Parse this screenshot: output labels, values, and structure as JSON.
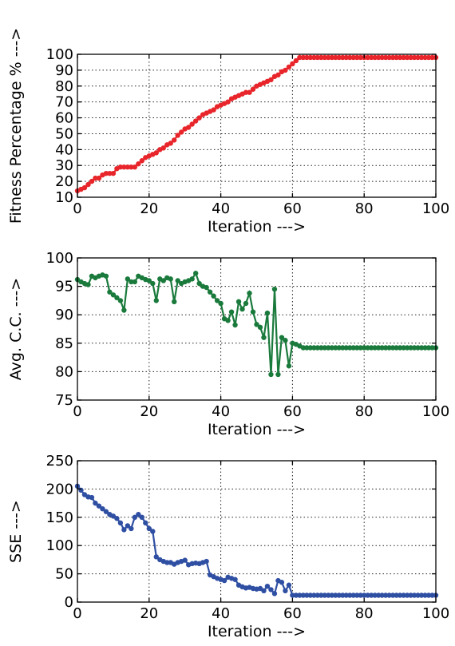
{
  "chart_data": [
    {
      "type": "line",
      "xlabel": "Iteration --->",
      "ylabel": "Fitness Percentage % --->",
      "xlim": [
        0,
        100
      ],
      "ylim": [
        10,
        100
      ],
      "xticks": [
        0,
        20,
        40,
        60,
        80,
        100
      ],
      "yticks": [
        10,
        20,
        30,
        40,
        50,
        60,
        70,
        80,
        90,
        100
      ],
      "grid": true,
      "series": [
        {
          "color": "#e8252a",
          "marker": "circle",
          "x": [
            0,
            1,
            2,
            3,
            4,
            5,
            6,
            7,
            8,
            9,
            10,
            11,
            12,
            13,
            14,
            15,
            16,
            17,
            18,
            19,
            20,
            21,
            22,
            23,
            24,
            25,
            26,
            27,
            28,
            29,
            30,
            31,
            32,
            33,
            34,
            35,
            36,
            37,
            38,
            39,
            40,
            41,
            42,
            43,
            44,
            45,
            46,
            47,
            48,
            49,
            50,
            51,
            52,
            53,
            54,
            55,
            56,
            57,
            58,
            59,
            60,
            61,
            62,
            63,
            64,
            65,
            66,
            67,
            68,
            69,
            70,
            71,
            72,
            73,
            74,
            75,
            76,
            77,
            78,
            79,
            80,
            81,
            82,
            83,
            84,
            85,
            86,
            87,
            88,
            89,
            90,
            91,
            92,
            93,
            94,
            95,
            96,
            97,
            98,
            99,
            100
          ],
          "values": [
            14,
            15,
            16,
            18,
            20,
            22,
            22,
            24,
            25,
            25,
            25,
            28,
            29,
            29,
            29,
            29,
            29,
            31,
            33,
            35,
            36,
            37,
            38,
            40,
            41,
            43,
            44,
            46,
            49,
            51,
            53,
            54,
            56,
            58,
            60,
            62,
            63,
            64,
            65,
            67,
            68,
            69,
            70,
            72,
            73,
            74,
            75,
            76,
            76,
            78,
            80,
            81,
            82,
            83,
            84,
            86,
            87,
            89,
            90,
            92,
            94,
            96,
            98,
            98,
            98,
            98,
            98,
            98,
            98,
            98,
            98,
            98,
            98,
            98,
            98,
            98,
            98,
            98,
            98,
            98,
            98,
            98,
            98,
            98,
            98,
            98,
            98,
            98,
            98,
            98,
            98,
            98,
            98,
            98,
            98,
            98,
            98,
            98,
            98,
            98,
            98
          ]
        }
      ]
    },
    {
      "type": "line",
      "xlabel": "Iteration --->",
      "ylabel": "Avg. C.C. --->",
      "xlim": [
        0,
        100
      ],
      "ylim": [
        75,
        100
      ],
      "xticks": [
        0,
        20,
        40,
        60,
        80,
        100
      ],
      "yticks": [
        75,
        80,
        85,
        90,
        95,
        100
      ],
      "grid": true,
      "series": [
        {
          "color": "#1a7a3c",
          "marker": "circle",
          "x": [
            0,
            1,
            2,
            3,
            4,
            5,
            6,
            7,
            8,
            9,
            10,
            11,
            12,
            13,
            14,
            15,
            16,
            17,
            18,
            19,
            20,
            21,
            22,
            23,
            24,
            25,
            26,
            27,
            28,
            29,
            30,
            31,
            32,
            33,
            34,
            35,
            36,
            37,
            38,
            39,
            40,
            41,
            42,
            43,
            44,
            45,
            46,
            47,
            48,
            49,
            50,
            51,
            52,
            53,
            54,
            55,
            56,
            57,
            58,
            59,
            60,
            61,
            62,
            63,
            64,
            65,
            66,
            67,
            68,
            69,
            70,
            71,
            72,
            73,
            74,
            75,
            76,
            77,
            78,
            79,
            80,
            81,
            82,
            83,
            84,
            85,
            86,
            87,
            88,
            89,
            90,
            91,
            92,
            93,
            94,
            95,
            96,
            97,
            98,
            99,
            100
          ],
          "values": [
            96.2,
            95.8,
            95.5,
            95.3,
            96.8,
            96.5,
            96.8,
            97.0,
            96.8,
            94.0,
            93.5,
            93.0,
            92.5,
            90.8,
            96.3,
            95.8,
            95.8,
            96.8,
            96.5,
            96.2,
            96.0,
            95.5,
            92.5,
            96.3,
            96.0,
            96.5,
            96.3,
            92.3,
            96.0,
            95.5,
            95.8,
            96.0,
            96.3,
            97.3,
            95.5,
            95.0,
            94.8,
            94.0,
            93.3,
            92.5,
            92.0,
            89.3,
            89.0,
            90.5,
            88.2,
            92.3,
            91.0,
            92.0,
            93.8,
            90.5,
            88.3,
            87.8,
            86.0,
            90.3,
            79.5,
            94.5,
            79.5,
            86.0,
            85.5,
            81.0,
            85.0,
            84.8,
            84.5,
            84.2,
            84.2,
            84.2,
            84.2,
            84.2,
            84.2,
            84.2,
            84.2,
            84.2,
            84.2,
            84.2,
            84.2,
            84.2,
            84.2,
            84.2,
            84.2,
            84.2,
            84.2,
            84.2,
            84.2,
            84.2,
            84.2,
            84.2,
            84.2,
            84.2,
            84.2,
            84.2,
            84.2,
            84.2,
            84.2,
            84.2,
            84.2,
            84.2,
            84.2,
            84.2,
            84.2,
            84.2,
            84.2
          ]
        }
      ]
    },
    {
      "type": "line",
      "xlabel": "Iteration --->",
      "ylabel": "SSE --->",
      "xlim": [
        0,
        100
      ],
      "ylim": [
        0,
        250
      ],
      "xticks": [
        0,
        20,
        40,
        60,
        80,
        100
      ],
      "yticks": [
        0,
        50,
        100,
        150,
        200,
        250
      ],
      "grid": true,
      "series": [
        {
          "color": "#2f4fa3",
          "marker": "circle",
          "x": [
            0,
            1,
            2,
            3,
            4,
            5,
            6,
            7,
            8,
            9,
            10,
            11,
            12,
            13,
            14,
            15,
            16,
            17,
            18,
            19,
            20,
            21,
            22,
            23,
            24,
            25,
            26,
            27,
            28,
            29,
            30,
            31,
            32,
            33,
            34,
            35,
            36,
            37,
            38,
            39,
            40,
            41,
            42,
            43,
            44,
            45,
            46,
            47,
            48,
            49,
            50,
            51,
            52,
            53,
            54,
            55,
            56,
            57,
            58,
            59,
            60,
            61,
            62,
            63,
            64,
            65,
            66,
            67,
            68,
            69,
            70,
            71,
            72,
            73,
            74,
            75,
            76,
            77,
            78,
            79,
            80,
            81,
            82,
            83,
            84,
            85,
            86,
            87,
            88,
            89,
            90,
            91,
            92,
            93,
            94,
            95,
            96,
            97,
            98,
            99,
            100
          ],
          "values": [
            205,
            198,
            190,
            186,
            185,
            175,
            170,
            165,
            160,
            155,
            152,
            148,
            140,
            128,
            135,
            130,
            150,
            155,
            150,
            140,
            130,
            125,
            80,
            75,
            72,
            70,
            70,
            67,
            70,
            72,
            74,
            66,
            68,
            69,
            68,
            70,
            72,
            48,
            45,
            42,
            40,
            38,
            44,
            42,
            40,
            30,
            27,
            25,
            26,
            24,
            23,
            24,
            20,
            28,
            22,
            15,
            38,
            35,
            20,
            30,
            12,
            12,
            12,
            12,
            12,
            12,
            12,
            12,
            12,
            12,
            12,
            12,
            12,
            12,
            12,
            12,
            12,
            12,
            12,
            12,
            12,
            12,
            12,
            12,
            12,
            12,
            12,
            12,
            12,
            12,
            12,
            12,
            12,
            12,
            12,
            12,
            12,
            12,
            12,
            12,
            12
          ]
        }
      ]
    }
  ]
}
